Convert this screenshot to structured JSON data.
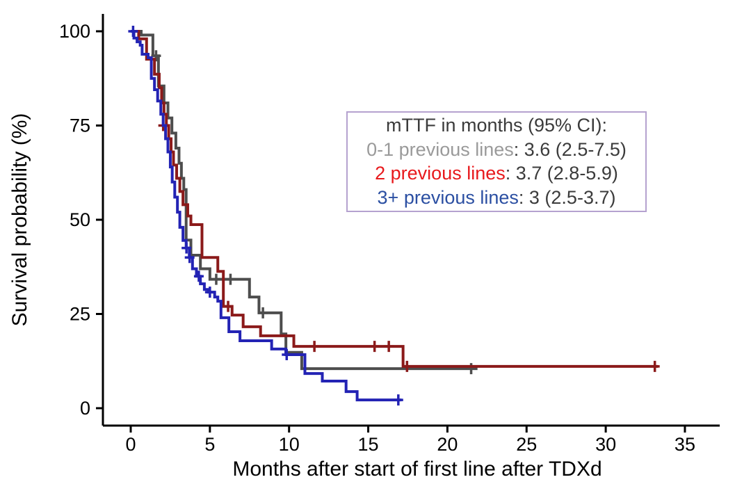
{
  "chart_data": {
    "type": "line",
    "subtype": "kaplan-meier-step-curves",
    "title": "",
    "xlabel": "Months after start of first line after TDXd",
    "ylabel": "Survival probability (%)",
    "xlim": [
      0,
      37
    ],
    "ylim": [
      0,
      100
    ],
    "x_ticks": [
      0,
      5,
      10,
      15,
      20,
      25,
      30,
      35
    ],
    "y_ticks": [
      0,
      25,
      50,
      75,
      100
    ],
    "grid": false,
    "legend_position": "upper-right-inside",
    "series": [
      {
        "name": "0-1 previous lines",
        "color": "#4d4d4d",
        "median_ttf": "3.6 (2.5-7.5)",
        "end_x": 21.9,
        "points": [
          [
            0,
            100
          ],
          [
            0.66,
            99
          ],
          [
            1.4,
            93.5
          ],
          [
            1.75,
            85.5
          ],
          [
            2.1,
            81
          ],
          [
            2.35,
            77
          ],
          [
            2.6,
            73
          ],
          [
            2.85,
            69
          ],
          [
            3.05,
            65
          ],
          [
            3.2,
            61
          ],
          [
            3.35,
            58
          ],
          [
            3.5,
            44.6
          ],
          [
            3.8,
            40.6
          ],
          [
            4.4,
            37
          ],
          [
            5.0,
            34.2
          ],
          [
            7.5,
            29.5
          ],
          [
            8.1,
            25.3
          ],
          [
            9.5,
            19.7
          ],
          [
            9.8,
            14.8
          ],
          [
            10.8,
            10.5
          ]
        ],
        "censors": [
          [
            1.6,
            93.5
          ],
          [
            5.4,
            34.2
          ],
          [
            6.3,
            34.2
          ],
          [
            8.35,
            25.3
          ],
          [
            21.5,
            10.5
          ]
        ]
      },
      {
        "name": "2 previous lines",
        "color": "#8b1a1a",
        "median_ttf": "3.7 (2.8-5.9)",
        "end_x": 33.3,
        "points": [
          [
            0,
            100
          ],
          [
            0.5,
            98
          ],
          [
            1.0,
            92.6
          ],
          [
            1.5,
            88.6
          ],
          [
            1.8,
            85
          ],
          [
            1.95,
            81
          ],
          [
            2.1,
            78
          ],
          [
            2.25,
            75
          ],
          [
            2.4,
            71.5
          ],
          [
            2.55,
            68
          ],
          [
            2.7,
            64.5
          ],
          [
            2.9,
            61
          ],
          [
            3.1,
            57.5
          ],
          [
            3.3,
            54
          ],
          [
            3.6,
            51
          ],
          [
            3.8,
            48.7
          ],
          [
            4.5,
            40
          ],
          [
            5.5,
            36.3
          ],
          [
            5.85,
            27
          ],
          [
            6.4,
            24.7
          ],
          [
            7.1,
            21.6
          ],
          [
            8.2,
            19.2
          ],
          [
            10.3,
            16.4
          ],
          [
            17.2,
            11.1
          ]
        ],
        "censors": [
          [
            2.05,
            75
          ],
          [
            6.15,
            27
          ],
          [
            11.6,
            16.4
          ],
          [
            15.4,
            16.4
          ],
          [
            16.3,
            16.4
          ],
          [
            17.45,
            11.1
          ],
          [
            33.1,
            11.1
          ]
        ]
      },
      {
        "name": "3+ previous lines",
        "color": "#2323b4",
        "median_ttf": "3 (2.5-3.7)",
        "end_x": 17.1,
        "points": [
          [
            0,
            100
          ],
          [
            0.2,
            98.2
          ],
          [
            0.4,
            97.2
          ],
          [
            0.6,
            96.3
          ],
          [
            0.72,
            93.9
          ],
          [
            1.1,
            93
          ],
          [
            1.3,
            87.5
          ],
          [
            1.5,
            84.5
          ],
          [
            1.7,
            81.5
          ],
          [
            1.9,
            78
          ],
          [
            2.05,
            75
          ],
          [
            2.2,
            71.5
          ],
          [
            2.35,
            68
          ],
          [
            2.5,
            64
          ],
          [
            2.62,
            60
          ],
          [
            2.78,
            56
          ],
          [
            2.95,
            52
          ],
          [
            3.1,
            48
          ],
          [
            3.3,
            44.5
          ],
          [
            3.5,
            42.5
          ],
          [
            3.7,
            40
          ],
          [
            3.9,
            37
          ],
          [
            4.15,
            35
          ],
          [
            4.4,
            33
          ],
          [
            4.65,
            31.5
          ],
          [
            4.9,
            30.8
          ],
          [
            5.3,
            29.5
          ],
          [
            5.5,
            28.4
          ],
          [
            5.7,
            24
          ],
          [
            6.2,
            20.3
          ],
          [
            6.9,
            17.9
          ],
          [
            8.9,
            15.7
          ],
          [
            9.8,
            14.2
          ],
          [
            11.0,
            9.2
          ],
          [
            12.1,
            7.2
          ],
          [
            13.6,
            4.4
          ],
          [
            14.3,
            2.2
          ]
        ],
        "censors": [
          [
            0.15,
            100
          ],
          [
            3.52,
            42.5
          ],
          [
            3.72,
            40
          ],
          [
            4.3,
            35
          ],
          [
            5.0,
            30.8
          ],
          [
            9.85,
            14.2
          ],
          [
            16.9,
            2.2
          ]
        ]
      }
    ],
    "legend": {
      "title": "mTTF in months (95% CI):",
      "title_color": "#3b3b3b",
      "value_color": "#3b3b3b",
      "border_color": "#b5a2cf",
      "entries": [
        {
          "label": "0-1 previous lines",
          "separator": ": ",
          "value": "3.6 (2.5-7.5)",
          "label_color": "#9a9a9a"
        },
        {
          "label": "2 previous lines",
          "separator": ": ",
          "value": "3.7 (2.8-5.9)",
          "label_color": "#e8191c"
        },
        {
          "label": "3+ previous lines",
          "separator": ": ",
          "value": "3 (2.5-3.7)",
          "label_color": "#2b4fa2"
        }
      ]
    }
  }
}
